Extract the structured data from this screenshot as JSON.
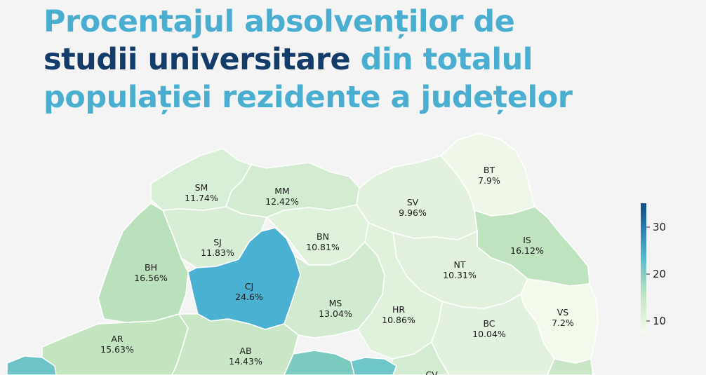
{
  "title": {
    "part1": "Procentajul absolvenților de",
    "part2_emphasis": "studii universitare",
    "part3": " din totalul",
    "part4": "populației rezidente a județelor"
  },
  "counties": [
    {
      "code": "SM",
      "value": "11.74%"
    },
    {
      "code": "MM",
      "value": "12.42%"
    },
    {
      "code": "BT",
      "value": "7.9%"
    },
    {
      "code": "SV",
      "value": "9.96%"
    },
    {
      "code": "SJ",
      "value": "11.83%"
    },
    {
      "code": "BN",
      "value": "10.81%"
    },
    {
      "code": "IS",
      "value": "16.12%"
    },
    {
      "code": "BH",
      "value": "16.56%"
    },
    {
      "code": "CJ",
      "value": "24.6%"
    },
    {
      "code": "NT",
      "value": "10.31%"
    },
    {
      "code": "MS",
      "value": "13.04%"
    },
    {
      "code": "HR",
      "value": "10.86%"
    },
    {
      "code": "VS",
      "value": "7.2%"
    },
    {
      "code": "BC",
      "value": "10.04%"
    },
    {
      "code": "AR",
      "value": "15.63%"
    },
    {
      "code": "AB",
      "value": "14.43%"
    },
    {
      "code": "CV",
      "value": ""
    }
  ],
  "colorbar": {
    "ticks": [
      "10",
      "20",
      "30"
    ],
    "colors": [
      "#f7fbf0",
      "#bfe3bf",
      "#62c0c8",
      "#2a7fb8",
      "#0c4a8a"
    ]
  }
}
